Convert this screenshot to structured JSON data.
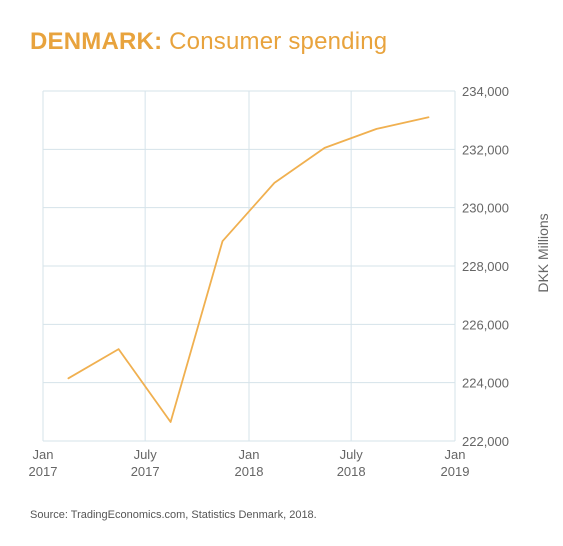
{
  "header": {
    "country": "DENMARK",
    "separator": ":",
    "subtitle": "Consumer spending"
  },
  "source": "Source: TradingEconomics.com, Statistics Denmark, 2018.",
  "colors": {
    "line": "#f0b050",
    "title": "#e8a33d",
    "grid": "#d5e3ea",
    "text": "#666666"
  },
  "chart_data": {
    "type": "line",
    "title": "DENMARK: Consumer spending",
    "xlabel": "",
    "ylabel": "DKK Millions",
    "y_axis_side": "right",
    "grid": true,
    "legend": "none",
    "xlim": [
      "2017-01-01",
      "2019-01-01"
    ],
    "ylim": [
      222000,
      234000
    ],
    "x_ticks": [
      {
        "date": "2017-01-01",
        "line1": "Jan",
        "line2": "2017"
      },
      {
        "date": "2017-07-01",
        "line1": "July",
        "line2": "2017"
      },
      {
        "date": "2018-01-01",
        "line1": "Jan",
        "line2": "2018"
      },
      {
        "date": "2018-07-01",
        "line1": "July",
        "line2": "2018"
      },
      {
        "date": "2019-01-01",
        "line1": "Jan",
        "line2": "2019"
      }
    ],
    "y_ticks": [
      222000,
      224000,
      226000,
      228000,
      230000,
      232000,
      234000
    ],
    "y_tick_labels": [
      "222,000",
      "224,000",
      "226,000",
      "228,000",
      "230,000",
      "232,000",
      "234,000"
    ],
    "series": [
      {
        "x": [
          "2017-02-15",
          "2017-05-15",
          "2017-08-15",
          "2017-11-15",
          "2018-02-15",
          "2018-05-15",
          "2018-08-15",
          "2018-11-15"
        ],
        "y": [
          224150,
          225150,
          222650,
          228850,
          230850,
          232050,
          232700,
          233100
        ]
      }
    ]
  }
}
